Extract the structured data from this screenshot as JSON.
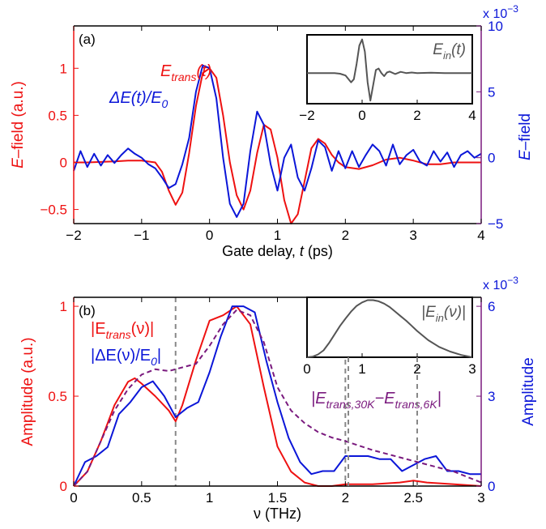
{
  "colors": {
    "red": "#ee1111",
    "blue": "#0b16d8",
    "purple": "#7a1a7e",
    "gray": "#555555",
    "dashed": "#888888",
    "axis": "#000000"
  },
  "chart_data": [
    {
      "panel_label": "(a)",
      "type": "line",
      "xlabel_prefix": "Gate delay, ",
      "xlabel_var": "t",
      "xlabel_suffix": " (ps)",
      "ylabel_prefix": "E",
      "ylabel_suffix": "–field (a.u.)",
      "y2label_prefix": "E",
      "y2label_suffix": "–field",
      "y2_exponent": "x 10",
      "y2_exponent_power": "−3",
      "xlim": [
        -2,
        4
      ],
      "ylim": [
        -0.65,
        1.45
      ],
      "y2lim": [
        -5,
        10
      ],
      "x_ticks": [
        "−2",
        "−1",
        "0",
        "1",
        "2",
        "3",
        "4"
      ],
      "y_ticks": [
        "−0.5",
        "0",
        "0.5",
        "1"
      ],
      "y2_ticks": [
        "−5",
        "0",
        "5",
        "10"
      ],
      "legend": {
        "red_main": "E",
        "red_sub": "trans",
        "red_tail": "(t)",
        "blue_main": "ΔE(t)/E",
        "blue_sub": "0"
      },
      "series": [
        {
          "name": "E_trans(t)",
          "axis": "left",
          "x": [
            -2,
            -1.8,
            -1.6,
            -1.4,
            -1.2,
            -1.0,
            -0.8,
            -0.7,
            -0.6,
            -0.5,
            -0.4,
            -0.3,
            -0.2,
            -0.1,
            0.0,
            0.1,
            0.2,
            0.3,
            0.4,
            0.5,
            0.6,
            0.7,
            0.8,
            0.9,
            1.0,
            1.1,
            1.2,
            1.3,
            1.4,
            1.5,
            1.6,
            1.7,
            1.8,
            1.9,
            2.0,
            2.2,
            2.4,
            2.6,
            2.8,
            3.0,
            3.2,
            3.4,
            3.6,
            3.8,
            4.0
          ],
          "y": [
            0.0,
            0.0,
            0.005,
            0.01,
            0.02,
            0.02,
            0.0,
            -0.1,
            -0.3,
            -0.45,
            -0.32,
            0.1,
            0.6,
            0.95,
            1.0,
            0.9,
            0.5,
            0.0,
            -0.35,
            -0.5,
            -0.3,
            0.1,
            0.4,
            0.35,
            0.05,
            -0.4,
            -0.65,
            -0.55,
            -0.2,
            0.15,
            0.25,
            0.2,
            0.08,
            0.0,
            -0.05,
            -0.07,
            -0.03,
            0.03,
            0.05,
            0.02,
            -0.02,
            -0.02,
            0.0,
            0.0,
            0.0
          ]
        },
        {
          "name": "ΔE(t)/E0",
          "axis": "right",
          "x": [
            -2,
            -1.9,
            -1.8,
            -1.7,
            -1.6,
            -1.5,
            -1.4,
            -1.3,
            -1.2,
            -1.1,
            -1.0,
            -0.9,
            -0.8,
            -0.7,
            -0.6,
            -0.5,
            -0.4,
            -0.3,
            -0.2,
            -0.1,
            0.0,
            0.1,
            0.2,
            0.3,
            0.4,
            0.5,
            0.6,
            0.7,
            0.8,
            0.9,
            1.0,
            1.1,
            1.2,
            1.3,
            1.4,
            1.5,
            1.6,
            1.7,
            1.8,
            1.9,
            2.0,
            2.1,
            2.2,
            2.3,
            2.4,
            2.5,
            2.6,
            2.7,
            2.8,
            2.9,
            3.0,
            3.1,
            3.2,
            3.3,
            3.4,
            3.5,
            3.6,
            3.7,
            3.8,
            3.9,
            4.0
          ],
          "y": [
            -1.0,
            0.5,
            -0.7,
            0.3,
            -0.6,
            0.2,
            -0.4,
            0.2,
            0.7,
            0.3,
            0.0,
            -0.5,
            -0.8,
            -1.5,
            -2.3,
            -2.0,
            -0.5,
            1.5,
            5.0,
            7.0,
            6.8,
            4.5,
            0.0,
            -3.5,
            -4.5,
            -3.5,
            0.5,
            3.5,
            2.5,
            -0.5,
            -2.5,
            0.0,
            1.0,
            -1.5,
            -2.5,
            -0.8,
            1.3,
            0.8,
            -1.0,
            0.5,
            -0.8,
            0.5,
            -0.7,
            0.2,
            1.0,
            0.5,
            -0.6,
            1.0,
            -0.5,
            0.2,
            0.6,
            -0.3,
            -0.6,
            0.5,
            -0.3,
            0.4,
            -0.7,
            0.2,
            0.5,
            0.0,
            0.3
          ]
        }
      ],
      "inset": {
        "label_main": "E",
        "label_sub": "in",
        "label_tail": "(t)",
        "xlim": [
          -2,
          4
        ],
        "ylim": [
          -1,
          1.25
        ],
        "x_ticks": [
          "−2",
          "0",
          "2",
          "4"
        ],
        "series": [
          {
            "name": "E_in(t)",
            "x": [
              -2,
              -1.5,
              -1.0,
              -0.8,
              -0.6,
              -0.4,
              -0.3,
              -0.2,
              -0.1,
              0.0,
              0.1,
              0.2,
              0.3,
              0.4,
              0.5,
              0.6,
              0.7,
              0.8,
              0.9,
              1.0,
              1.2,
              1.4,
              1.6,
              1.8,
              2.0,
              2.5,
              3.0,
              3.5,
              4.0
            ],
            "y": [
              0.0,
              0.0,
              0.0,
              -0.02,
              -0.08,
              -0.3,
              -0.2,
              0.3,
              0.9,
              1.1,
              0.7,
              -0.3,
              -0.9,
              -0.4,
              0.1,
              0.15,
              0.0,
              -0.1,
              0.02,
              0.05,
              -0.03,
              0.04,
              0.0,
              0.02,
              0.0,
              0.01,
              0.0,
              0.0,
              0.0
            ]
          }
        ]
      }
    },
    {
      "panel_label": "(b)",
      "type": "line",
      "xlabel_prefix": "ν",
      "xlabel_var": "",
      "xlabel_suffix": " (THz)",
      "ylabel_prefix": "Amplitude (a.u.)",
      "ylabel_suffix": "",
      "y2label_prefix": "Amplitude",
      "y2label_suffix": "",
      "y2_exponent": "x 10",
      "y2_exponent_power": "−3",
      "xlim": [
        0,
        3
      ],
      "ylim": [
        0,
        1.05
      ],
      "y2lim": [
        0,
        6.3
      ],
      "x_ticks": [
        "0",
        "0.5",
        "1",
        "1.5",
        "2",
        "2.5",
        "3"
      ],
      "y_ticks": [
        "0",
        "0.5",
        "1"
      ],
      "y2_ticks": [
        "0",
        "3",
        "6"
      ],
      "dashed_lines": [
        0.75,
        2.0
      ],
      "legend": {
        "red_main": "|E",
        "red_sub": "trans",
        "red_tail": "(ν)|",
        "blue_main": "|ΔE(ν)/E",
        "blue_sub": "0",
        "blue_tail": "|",
        "purple_main": "|E",
        "purple_sub": "trans,30K",
        "purple_mid": "−E",
        "purple_sub2": "trans,6K",
        "purple_tail": "|"
      },
      "series": [
        {
          "name": "|E_trans(ν)|",
          "axis": "left",
          "x": [
            0,
            0.1,
            0.2,
            0.3,
            0.4,
            0.45,
            0.5,
            0.6,
            0.7,
            0.75,
            0.8,
            0.9,
            1.0,
            1.1,
            1.2,
            1.3,
            1.4,
            1.5,
            1.6,
            1.7,
            1.8,
            1.9,
            2.0,
            2.2,
            2.4,
            2.5,
            2.6,
            2.8,
            3.0
          ],
          "y": [
            0.0,
            0.08,
            0.25,
            0.45,
            0.58,
            0.6,
            0.57,
            0.5,
            0.42,
            0.36,
            0.45,
            0.7,
            0.92,
            0.95,
            1.0,
            0.9,
            0.55,
            0.22,
            0.08,
            0.02,
            0.0,
            0.0,
            0.01,
            0.01,
            0.02,
            0.03,
            0.02,
            0.01,
            0.0
          ]
        },
        {
          "name": "|ΔE(ν)/E0|",
          "axis": "right",
          "x": [
            0,
            0.083,
            0.167,
            0.25,
            0.333,
            0.417,
            0.5,
            0.583,
            0.667,
            0.75,
            0.833,
            0.917,
            1.0,
            1.083,
            1.167,
            1.25,
            1.333,
            1.417,
            1.5,
            1.583,
            1.667,
            1.75,
            1.833,
            1.917,
            2.0,
            2.083,
            2.167,
            2.25,
            2.333,
            2.417,
            2.5,
            2.583,
            2.667,
            2.75,
            2.833,
            2.917,
            3.0
          ],
          "y": [
            0.0,
            0.8,
            1.0,
            1.3,
            2.4,
            2.8,
            3.3,
            3.5,
            3.0,
            2.3,
            2.6,
            2.8,
            3.8,
            5.0,
            6.0,
            6.0,
            5.8,
            4.2,
            2.8,
            1.6,
            0.8,
            0.4,
            0.5,
            0.5,
            1.0,
            1.0,
            1.0,
            0.9,
            0.9,
            0.5,
            0.7,
            0.9,
            1.0,
            0.5,
            0.5,
            0.4,
            0.4
          ]
        },
        {
          "name": "|E_trans,30K−E_trans,6K|",
          "axis": "left",
          "dashed": true,
          "x": [
            0,
            0.1,
            0.2,
            0.3,
            0.4,
            0.5,
            0.6,
            0.7,
            0.8,
            0.9,
            1.0,
            1.1,
            1.2,
            1.3,
            1.4,
            1.5,
            1.6,
            1.7,
            1.8,
            1.9,
            2.0,
            2.2,
            2.4,
            2.6,
            2.8,
            3.0
          ],
          "y": [
            0.0,
            0.08,
            0.25,
            0.42,
            0.54,
            0.62,
            0.65,
            0.64,
            0.66,
            0.68,
            0.78,
            0.9,
            0.98,
            0.95,
            0.8,
            0.55,
            0.42,
            0.35,
            0.3,
            0.27,
            0.25,
            0.2,
            0.16,
            0.12,
            0.08,
            0.02
          ]
        }
      ],
      "inset": {
        "label_main": "|E",
        "label_sub": "in",
        "label_tail": "(ν)|",
        "xlim": [
          0,
          3
        ],
        "ylim": [
          0,
          1.05
        ],
        "x_ticks": [
          "0",
          "1",
          "2",
          "3"
        ],
        "dashed_lines": [
          0.75,
          2.0
        ],
        "series": [
          {
            "name": "|E_in(ν)|",
            "x": [
              0,
              0.1,
              0.2,
              0.3,
              0.4,
              0.5,
              0.6,
              0.7,
              0.8,
              0.9,
              1.0,
              1.1,
              1.2,
              1.3,
              1.4,
              1.5,
              1.6,
              1.7,
              1.8,
              1.9,
              2.0,
              2.2,
              2.4,
              2.6,
              2.8,
              3.0
            ],
            "y": [
              0.0,
              0.01,
              0.05,
              0.12,
              0.25,
              0.4,
              0.55,
              0.68,
              0.8,
              0.9,
              0.96,
              1.0,
              1.0,
              0.98,
              0.94,
              0.88,
              0.8,
              0.72,
              0.64,
              0.55,
              0.46,
              0.3,
              0.18,
              0.1,
              0.04,
              0.0
            ]
          }
        ]
      }
    }
  ]
}
